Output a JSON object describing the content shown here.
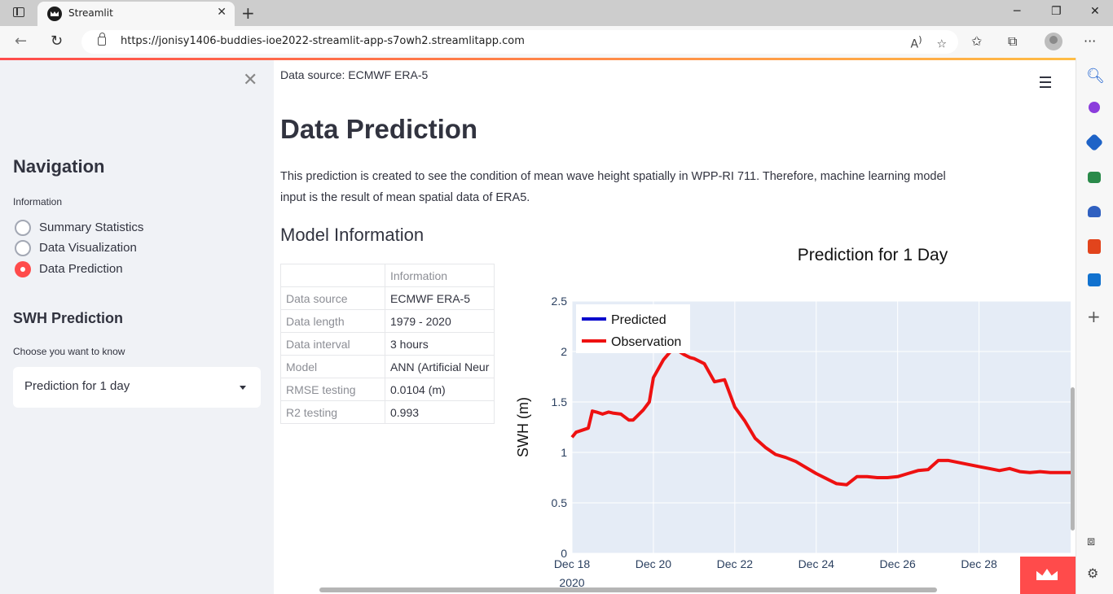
{
  "browser": {
    "tab_title": "Streamlit",
    "url": "https://jonisy1406-buddies-ioe2022-streamlit-app-s7owh2.streamlitapp.com"
  },
  "sidebar": {
    "nav_title": "Navigation",
    "radio_group_label": "Information",
    "radio_options": [
      "Summary Statistics",
      "Data Visualization",
      "Data Prediction"
    ],
    "selected_option": "Data Prediction",
    "swh_title": "SWH Prediction",
    "select_label": "Choose you want to know",
    "select_value": "Prediction for 1 day"
  },
  "main": {
    "data_source": "Data source: ECMWF ERA-5",
    "title": "Data Prediction",
    "paragraph": "This prediction is created to see the condition of mean wave height spatially in WPP-RI 711. Therefore, machine learning model input is the result of mean spatial data of ERA5.",
    "model_info_title": "Model Information",
    "table": {
      "header": [
        "",
        "Information"
      ],
      "rows": [
        [
          "Data source",
          "ECMWF ERA-5"
        ],
        [
          "Data length",
          "1979 - 2020"
        ],
        [
          "Data interval",
          "3 hours"
        ],
        [
          "Model",
          "ANN (Artificial Neur"
        ],
        [
          "RMSE testing",
          "0.0104 (m)"
        ],
        [
          "R2 testing",
          "0.993"
        ]
      ]
    }
  },
  "chart_data": {
    "type": "line",
    "title": "Prediction for 1 Day",
    "ylabel": "SWH (m)",
    "xlabel": "",
    "ylim": [
      0,
      2.5
    ],
    "yticks": [
      "0",
      "0.5",
      "1",
      "1.5",
      "2",
      "2.5"
    ],
    "xticks": [
      "Dec 18",
      "Dec 20",
      "Dec 22",
      "Dec 24",
      "Dec 26",
      "Dec 28"
    ],
    "xtick_days": [
      18,
      20,
      22,
      24,
      26,
      28
    ],
    "x_year_label": "2020",
    "xlim_days": [
      18,
      30.25
    ],
    "legend_position": "top-left",
    "grid": true,
    "series": [
      {
        "name": "Predicted",
        "color": "#0000cc",
        "x_day": [],
        "y": []
      },
      {
        "name": "Observation",
        "color": "#ee1111",
        "x_day": [
          18.0,
          18.1,
          18.25,
          18.4,
          18.5,
          18.6,
          18.75,
          18.9,
          19.0,
          19.2,
          19.4,
          19.5,
          19.6,
          19.75,
          19.9,
          20.0,
          20.25,
          20.4,
          20.5,
          20.6,
          20.75,
          20.9,
          21.0,
          21.25,
          21.5,
          21.75,
          22.0,
          22.25,
          22.5,
          22.75,
          23.0,
          23.25,
          23.5,
          23.75,
          24.0,
          24.25,
          24.5,
          24.75,
          25.0,
          25.25,
          25.5,
          25.75,
          26.0,
          26.25,
          26.5,
          26.75,
          27.0,
          27.25,
          27.5,
          27.75,
          28.0,
          28.25,
          28.5,
          28.75,
          29.0,
          29.25,
          29.5,
          29.75,
          30.0,
          30.25
        ],
        "y": [
          1.15,
          1.2,
          1.22,
          1.24,
          1.41,
          1.4,
          1.38,
          1.4,
          1.39,
          1.38,
          1.32,
          1.32,
          1.36,
          1.42,
          1.5,
          1.74,
          1.92,
          1.99,
          2.02,
          2.01,
          1.97,
          1.94,
          1.93,
          1.88,
          1.7,
          1.72,
          1.45,
          1.31,
          1.14,
          1.05,
          0.98,
          0.95,
          0.91,
          0.85,
          0.79,
          0.74,
          0.69,
          0.68,
          0.76,
          0.76,
          0.75,
          0.75,
          0.76,
          0.79,
          0.82,
          0.83,
          0.92,
          0.92,
          0.9,
          0.88,
          0.86,
          0.84,
          0.82,
          0.84,
          0.81,
          0.8,
          0.81,
          0.8,
          0.8,
          0.8
        ]
      }
    ]
  }
}
